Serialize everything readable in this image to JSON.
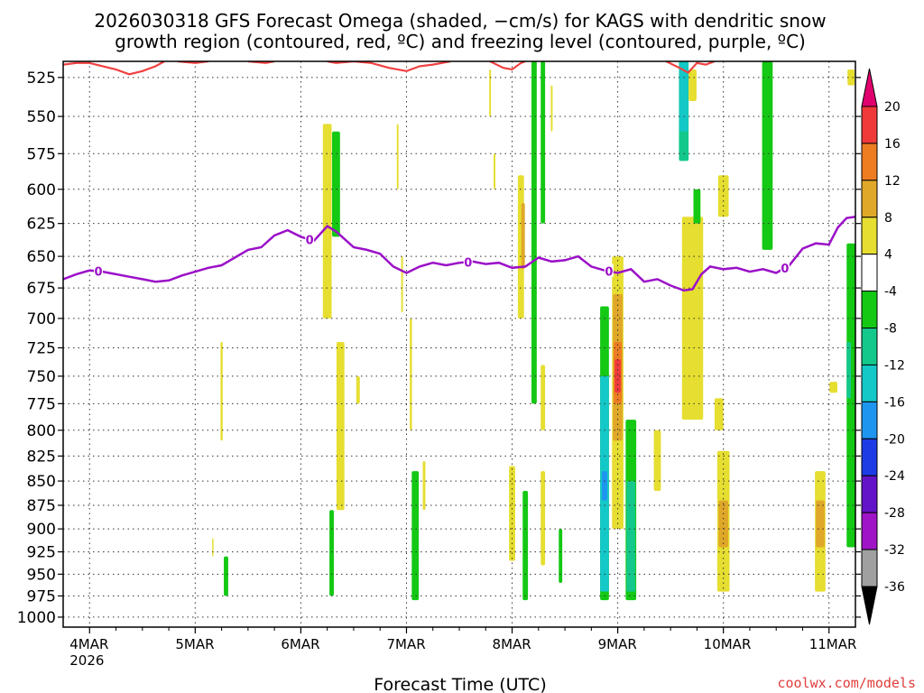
{
  "chart_data": {
    "type": "heatmap",
    "title_line1": "2026030318 GFS Forecast Omega (shaded, −cm/s) for KAGS with dendritic snow",
    "title_line2": "growth region (contoured, red, ºC) and freezing level (contoured, purple, ºC)",
    "xlabel": "Forecast Time (UTC)",
    "ylabel": "",
    "credit": "coolwx.com/models",
    "x_ticks": [
      {
        "label": "4MAR",
        "sub": "2026",
        "hour": 0
      },
      {
        "label": "5MAR",
        "sub": "",
        "hour": 24
      },
      {
        "label": "6MAR",
        "sub": "",
        "hour": 48
      },
      {
        "label": "7MAR",
        "sub": "",
        "hour": 72
      },
      {
        "label": "8MAR",
        "sub": "",
        "hour": 96
      },
      {
        "label": "9MAR",
        "sub": "",
        "hour": 120
      },
      {
        "label": "10MAR",
        "sub": "",
        "hour": 144
      },
      {
        "label": "11MAR",
        "sub": "",
        "hour": 168
      }
    ],
    "xlim_hours": [
      -6,
      174
    ],
    "y_ticks": [
      "525",
      "550",
      "575",
      "600",
      "625",
      "650",
      "675",
      "700",
      "725",
      "750",
      "775",
      "800",
      "825",
      "850",
      "875",
      "900",
      "925",
      "950",
      "975",
      "1000"
    ],
    "ylim_hpa": [
      515,
      1012
    ],
    "y_scale": "log-pressure",
    "grid": true,
    "colorbar": {
      "labels": [
        "20",
        "16",
        "12",
        "8",
        "4",
        "-4",
        "-8",
        "-12",
        "-16",
        "-20",
        "-24",
        "-28",
        "-32",
        "-36"
      ],
      "bins": [
        {
          "lo": 20,
          "hi": 24,
          "color": "#e0006e"
        },
        {
          "lo": 16,
          "hi": 20,
          "color": "#f03a3a"
        },
        {
          "lo": 12,
          "hi": 16,
          "color": "#ee7d22"
        },
        {
          "lo": 8,
          "hi": 12,
          "color": "#e0a828"
        },
        {
          "lo": 4,
          "hi": 8,
          "color": "#e6de30"
        },
        {
          "lo": -4,
          "hi": 4,
          "color": "#ffffff"
        },
        {
          "lo": -8,
          "hi": -4,
          "color": "#14c814"
        },
        {
          "lo": -12,
          "hi": -8,
          "color": "#14c88c"
        },
        {
          "lo": -16,
          "hi": -12,
          "color": "#14c8c8"
        },
        {
          "lo": -20,
          "hi": -16,
          "color": "#1e96f0"
        },
        {
          "lo": -24,
          "hi": -20,
          "color": "#1e3ce6"
        },
        {
          "lo": -28,
          "hi": -24,
          "color": "#6414c8"
        },
        {
          "lo": -32,
          "hi": -28,
          "color": "#a014c8"
        },
        {
          "lo": -36,
          "hi": -32,
          "color": "#a0a0a0"
        },
        {
          "lo": -40,
          "hi": -36,
          "color": "#000000"
        }
      ]
    },
    "omega_cells": [
      {
        "hour": 30,
        "w": 0.5,
        "p_top": 720,
        "p_bot": 810,
        "value": 5
      },
      {
        "hour": 31,
        "w": 1.0,
        "p_top": 930,
        "p_bot": 975,
        "value": -6
      },
      {
        "hour": 28,
        "w": 0.3,
        "p_top": 910,
        "p_bot": 930,
        "value": 5
      },
      {
        "hour": 54,
        "w": 2.0,
        "p_top": 555,
        "p_bot": 700,
        "value": 5
      },
      {
        "hour": 56,
        "w": 1.8,
        "p_top": 560,
        "p_bot": 635,
        "value": -6
      },
      {
        "hour": 55,
        "w": 1.0,
        "p_top": 880,
        "p_bot": 975,
        "value": -6
      },
      {
        "hour": 57,
        "w": 1.8,
        "p_top": 720,
        "p_bot": 880,
        "value": 5
      },
      {
        "hour": 61,
        "w": 0.8,
        "p_top": 750,
        "p_bot": 775,
        "value": 5
      },
      {
        "hour": 70,
        "w": 0.4,
        "p_top": 555,
        "p_bot": 600,
        "value": 5
      },
      {
        "hour": 71,
        "w": 0.4,
        "p_top": 650,
        "p_bot": 695,
        "value": 5
      },
      {
        "hour": 73,
        "w": 0.5,
        "p_top": 700,
        "p_bot": 800,
        "value": 5
      },
      {
        "hour": 74,
        "w": 1.6,
        "p_top": 840,
        "p_bot": 980,
        "value": -6
      },
      {
        "hour": 76,
        "w": 0.6,
        "p_top": 830,
        "p_bot": 880,
        "value": 5
      },
      {
        "hour": 91,
        "w": 0.4,
        "p_top": 520,
        "p_bot": 550,
        "value": 5
      },
      {
        "hour": 92,
        "w": 0.4,
        "p_top": 575,
        "p_bot": 600,
        "value": 5
      },
      {
        "hour": 96,
        "w": 1.4,
        "p_top": 835,
        "p_bot": 935,
        "value": 5
      },
      {
        "hour": 98,
        "w": 1.4,
        "p_top": 590,
        "p_bot": 700,
        "value": 5
      },
      {
        "hour": 98.5,
        "w": 0.8,
        "p_top": 610,
        "p_bot": 660,
        "value": 10
      },
      {
        "hour": 99,
        "w": 1.2,
        "p_top": 860,
        "p_bot": 980,
        "value": -6
      },
      {
        "hour": 101,
        "w": 1.2,
        "p_top": 515,
        "p_bot": 775,
        "value": -6
      },
      {
        "hour": 103,
        "w": 1.0,
        "p_top": 515,
        "p_bot": 625,
        "value": -6
      },
      {
        "hour": 103,
        "w": 1.0,
        "p_top": 740,
        "p_bot": 800,
        "value": 5
      },
      {
        "hour": 103,
        "w": 1.0,
        "p_top": 840,
        "p_bot": 940,
        "value": 5
      },
      {
        "hour": 105,
        "w": 0.4,
        "p_top": 530,
        "p_bot": 560,
        "value": 5
      },
      {
        "hour": 107,
        "w": 0.8,
        "p_top": 900,
        "p_bot": 960,
        "value": -6
      },
      {
        "hour": 117,
        "w": 2.0,
        "p_top": 690,
        "p_bot": 980,
        "value": -6
      },
      {
        "hour": 117,
        "w": 2.0,
        "p_top": 750,
        "p_bot": 970,
        "value": -14
      },
      {
        "hour": 117,
        "w": 1.2,
        "p_top": 840,
        "p_bot": 870,
        "value": -18
      },
      {
        "hour": 120,
        "w": 2.6,
        "p_top": 650,
        "p_bot": 900,
        "value": 5
      },
      {
        "hour": 120,
        "w": 2.2,
        "p_top": 680,
        "p_bot": 810,
        "value": 10
      },
      {
        "hour": 120,
        "w": 1.8,
        "p_top": 720,
        "p_bot": 775,
        "value": 14
      },
      {
        "hour": 120,
        "w": 1.4,
        "p_top": 735,
        "p_bot": 765,
        "value": 18
      },
      {
        "hour": 123,
        "w": 2.4,
        "p_top": 790,
        "p_bot": 980,
        "value": -6
      },
      {
        "hour": 123,
        "w": 2.0,
        "p_top": 850,
        "p_bot": 970,
        "value": -10
      },
      {
        "hour": 129,
        "w": 1.6,
        "p_top": 800,
        "p_bot": 860,
        "value": 5
      },
      {
        "hour": 135,
        "w": 2.2,
        "p_top": 515,
        "p_bot": 580,
        "value": -10
      },
      {
        "hour": 135,
        "w": 2.0,
        "p_top": 515,
        "p_bot": 560,
        "value": -14
      },
      {
        "hour": 137,
        "w": 4.8,
        "p_top": 620,
        "p_bot": 790,
        "value": 5
      },
      {
        "hour": 137,
        "w": 1.8,
        "p_top": 520,
        "p_bot": 540,
        "value": 5
      },
      {
        "hour": 138,
        "w": 1.6,
        "p_top": 600,
        "p_bot": 625,
        "value": -6
      },
      {
        "hour": 143,
        "w": 2.0,
        "p_top": 770,
        "p_bot": 800,
        "value": 5
      },
      {
        "hour": 144,
        "w": 2.4,
        "p_top": 590,
        "p_bot": 620,
        "value": 5
      },
      {
        "hour": 144,
        "w": 2.8,
        "p_top": 820,
        "p_bot": 970,
        "value": 5
      },
      {
        "hour": 144,
        "w": 2.2,
        "p_top": 870,
        "p_bot": 920,
        "value": 10
      },
      {
        "hour": 154,
        "w": 2.4,
        "p_top": 515,
        "p_bot": 645,
        "value": -6
      },
      {
        "hour": 166,
        "w": 2.4,
        "p_top": 840,
        "p_bot": 970,
        "value": 5
      },
      {
        "hour": 166,
        "w": 2.0,
        "p_top": 870,
        "p_bot": 920,
        "value": 10
      },
      {
        "hour": 169,
        "w": 1.8,
        "p_top": 755,
        "p_bot": 765,
        "value": 5
      },
      {
        "hour": 173,
        "w": 2.0,
        "p_top": 640,
        "p_bot": 920,
        "value": -6
      },
      {
        "hour": 172.5,
        "w": 1.0,
        "p_top": 720,
        "p_bot": 770,
        "value": -10
      },
      {
        "hour": 173,
        "w": 1.6,
        "p_top": 520,
        "p_bot": 530,
        "value": 5
      }
    ],
    "freezing_level": {
      "name": "0",
      "color": "#9b10c8",
      "points": [
        [
          -6,
          668
        ],
        [
          -3,
          664
        ],
        [
          0,
          661
        ],
        [
          3,
          662
        ],
        [
          6,
          664
        ],
        [
          9,
          666
        ],
        [
          12,
          668
        ],
        [
          15,
          670
        ],
        [
          18,
          669
        ],
        [
          21,
          665
        ],
        [
          24,
          662
        ],
        [
          27,
          659
        ],
        [
          30,
          657
        ],
        [
          33,
          651
        ],
        [
          36,
          645
        ],
        [
          39,
          643
        ],
        [
          42,
          634
        ],
        [
          45,
          630
        ],
        [
          48,
          635
        ],
        [
          51,
          638
        ],
        [
          54,
          627
        ],
        [
          56,
          631
        ],
        [
          60,
          643
        ],
        [
          63,
          645
        ],
        [
          66,
          648
        ],
        [
          69,
          658
        ],
        [
          72,
          663
        ],
        [
          75,
          658
        ],
        [
          78,
          655
        ],
        [
          81,
          657
        ],
        [
          84,
          655
        ],
        [
          87,
          654
        ],
        [
          90,
          656
        ],
        [
          93,
          655
        ],
        [
          96,
          659
        ],
        [
          99,
          658
        ],
        [
          102,
          651
        ],
        [
          105,
          654
        ],
        [
          108,
          653
        ],
        [
          111,
          650
        ],
        [
          114,
          658
        ],
        [
          117,
          661
        ],
        [
          120,
          663
        ],
        [
          123,
          660
        ],
        [
          126,
          670
        ],
        [
          129,
          668
        ],
        [
          132,
          673
        ],
        [
          135,
          677
        ],
        [
          137,
          676
        ],
        [
          139,
          664
        ],
        [
          141,
          658
        ],
        [
          144,
          660
        ],
        [
          147,
          659
        ],
        [
          150,
          662
        ],
        [
          153,
          660
        ],
        [
          156,
          663
        ],
        [
          159,
          657
        ],
        [
          162,
          644
        ],
        [
          165,
          640
        ],
        [
          168,
          641
        ],
        [
          170,
          628
        ],
        [
          172,
          621
        ],
        [
          174,
          620
        ]
      ],
      "labels": [
        {
          "hour": 2,
          "text": "0"
        },
        {
          "hour": 50,
          "text": "0"
        },
        {
          "hour": 86,
          "text": "0"
        },
        {
          "hour": 118,
          "text": "0"
        },
        {
          "hour": 158,
          "text": "0"
        }
      ]
    },
    "dgz_isotherm": {
      "color": "#f04040",
      "segments": [
        [
          [
            -6,
            517
          ],
          [
            -3,
            516
          ],
          [
            0,
            516
          ],
          [
            3,
            518
          ],
          [
            6,
            520
          ],
          [
            9,
            523
          ],
          [
            12,
            521
          ],
          [
            15,
            518
          ],
          [
            17,
            515
          ]
        ],
        [
          [
            20,
            515
          ],
          [
            24,
            516
          ],
          [
            27,
            515
          ]
        ],
        [
          [
            36,
            515
          ],
          [
            40,
            516
          ],
          [
            42,
            515
          ]
        ],
        [
          [
            54,
            515
          ],
          [
            56,
            516
          ],
          [
            60,
            515
          ],
          [
            64,
            516
          ],
          [
            68,
            519
          ],
          [
            72,
            521
          ],
          [
            75,
            518
          ],
          [
            78,
            517
          ],
          [
            82,
            515
          ]
        ],
        [
          [
            91,
            515
          ],
          [
            94,
            519
          ],
          [
            96,
            520
          ],
          [
            98,
            516
          ],
          [
            99,
            515
          ]
        ],
        [
          [
            131,
            515
          ],
          [
            134,
            519
          ],
          [
            136,
            522
          ],
          [
            138,
            516
          ],
          [
            140,
            517
          ],
          [
            142,
            515
          ]
        ]
      ]
    }
  }
}
